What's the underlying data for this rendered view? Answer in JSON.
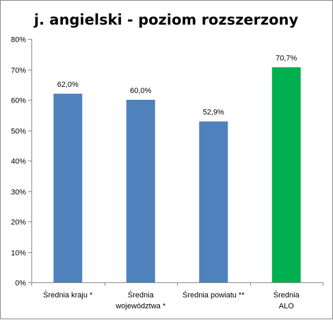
{
  "chart_data": {
    "type": "bar",
    "title": "j. angielski - poziom rozszerzony",
    "categories": [
      [
        "Średnia kraju *"
      ],
      [
        "Średnia",
        "województwa *"
      ],
      [
        "Średnia powiatu **"
      ],
      [
        "Średnia",
        "ALO"
      ]
    ],
    "values": [
      62.0,
      60.0,
      52.9,
      70.7
    ],
    "data_labels": [
      "62,0%",
      "60,0%",
      "52,9%",
      "70,7%"
    ],
    "bar_colors": [
      "#4F81BD",
      "#4F81BD",
      "#4F81BD",
      "#00B050"
    ],
    "yticks": [
      0,
      10,
      20,
      30,
      40,
      50,
      60,
      70,
      80
    ],
    "ytick_labels": [
      "0%",
      "10%",
      "20%",
      "30%",
      "40%",
      "50%",
      "60%",
      "70%",
      "80%"
    ],
    "ylim": [
      0,
      80
    ],
    "grid": false,
    "legend": "none"
  }
}
